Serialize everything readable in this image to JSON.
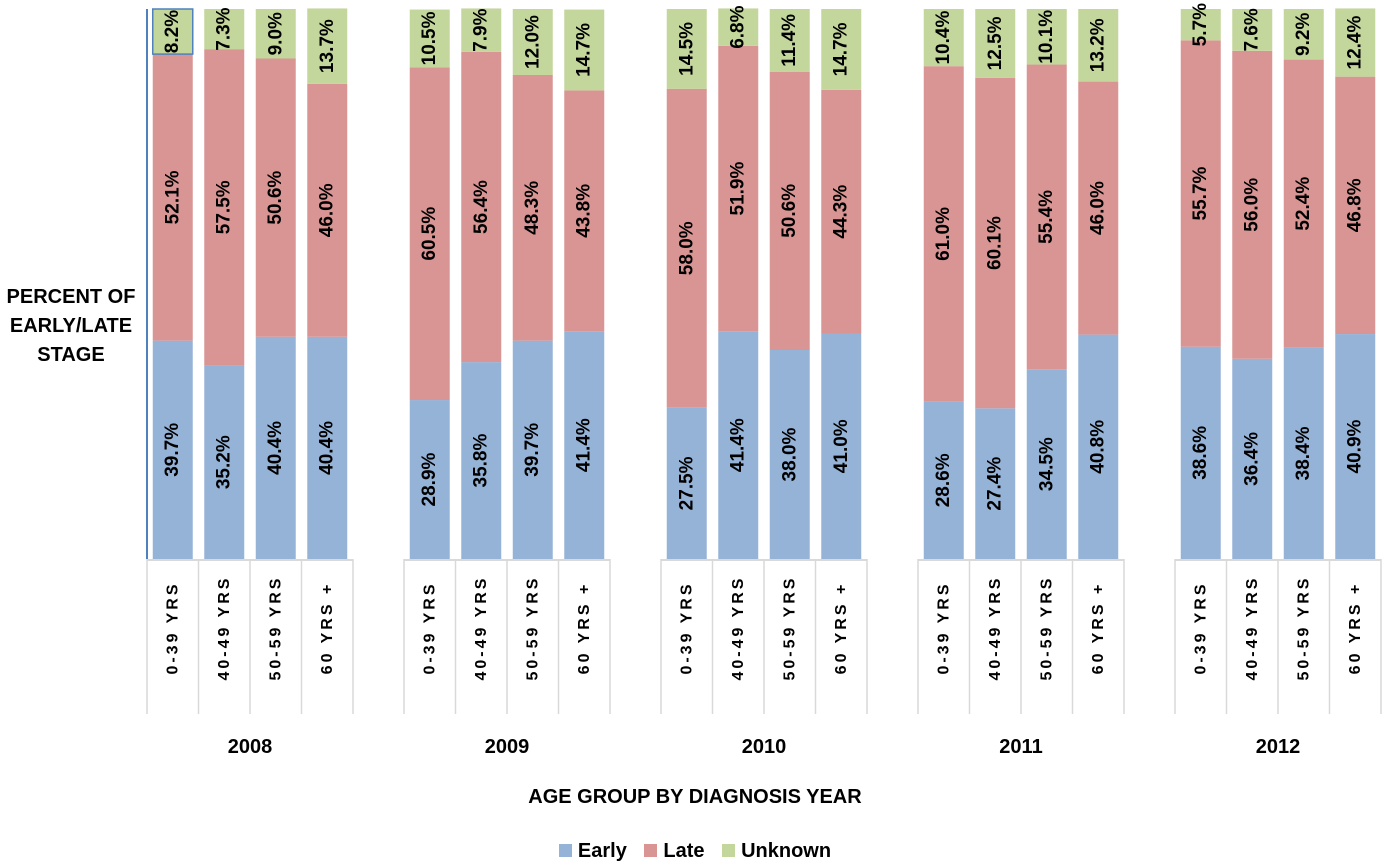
{
  "chart_data": {
    "type": "bar",
    "stacked": true,
    "title": "",
    "ylabel": "PERCENT OF EARLY/LATE STAGE",
    "xlabel": "AGE GROUP BY DIAGNOSIS YEAR",
    "ylim": [
      0,
      100
    ],
    "grid": false,
    "legend_position": "bottom",
    "groups": [
      "2008",
      "2009",
      "2010",
      "2011",
      "2012"
    ],
    "categories": [
      "0-39 YRS",
      "40-49 YRS",
      "50-59 YRS",
      "60 YRS +"
    ],
    "series": [
      {
        "name": "Early",
        "color": "#95b3d7",
        "values": [
          [
            39.7,
            35.2,
            40.4,
            40.4
          ],
          [
            28.9,
            35.8,
            39.7,
            41.4
          ],
          [
            27.5,
            41.4,
            38.0,
            41.0
          ],
          [
            28.6,
            27.4,
            34.5,
            40.8
          ],
          [
            38.6,
            36.4,
            38.4,
            40.9
          ]
        ]
      },
      {
        "name": "Late",
        "color": "#d99594",
        "values": [
          [
            52.1,
            57.5,
            50.6,
            46.0
          ],
          [
            60.5,
            56.4,
            48.3,
            43.8
          ],
          [
            58.0,
            51.9,
            50.6,
            44.3
          ],
          [
            61.0,
            60.1,
            55.4,
            46.0
          ],
          [
            55.7,
            56.0,
            52.4,
            46.8
          ]
        ]
      },
      {
        "name": "Unknown",
        "color": "#c3d69b",
        "values": [
          [
            8.2,
            7.3,
            9.0,
            13.7
          ],
          [
            10.5,
            7.9,
            12.0,
            14.7
          ],
          [
            14.5,
            6.8,
            11.4,
            14.7
          ],
          [
            10.4,
            12.5,
            10.1,
            13.2
          ],
          [
            5.7,
            7.6,
            9.2,
            12.4
          ]
        ]
      }
    ]
  }
}
